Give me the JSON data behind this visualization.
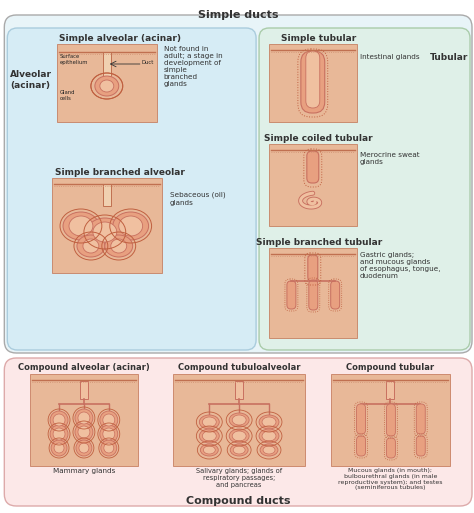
{
  "title": "Simple ducts",
  "bottom_title": "Compound ducts",
  "bg_color": "#ffffff",
  "alveolar_label": "Alveolar\n(acinar)",
  "tubular_label": "Tubular",
  "sections": {
    "simple_alveolar": "Simple alveolar (acinar)",
    "simple_branched_alveolar": "Simple branched alveolar",
    "simple_tubular": "Simple tubular",
    "simple_coiled_tubular": "Simple coiled tubular",
    "simple_branched_tubular": "Simple branched tubular",
    "compound_alveolar": "Compound alveolar (acinar)",
    "compound_tubuloalveolar": "Compound tubuloalveolar",
    "compound_tubular": "Compound tubular"
  },
  "examples": {
    "simple_alveolar": "Not found in\nadult; a stage in\ndevelopment of\nsimple\nbranched\nglands",
    "simple_branched_alveolar": "Sebaceous (oil)\nglands",
    "simple_tubular": "Intestinal glands",
    "simple_coiled_tubular": "Merocrine sweat\nglands",
    "simple_branched_tubular": "Gastric glands;\nand mucous glands\nof esophagus, tongue,\nduodenum",
    "compound_alveolar": "Mammary glands",
    "compound_tubuloalveolar": "Salivary glands; glands of\nrespiratory passages;\nand pancreas",
    "compound_tubular": "Mucous glands (in mouth);\nbulbourethral glands (in male\nreproductive system); and testes\n(seminiferous tubules)"
  },
  "gland_fill": "#e8a080",
  "gland_fill_light": "#f0c0a0",
  "gland_outer": "#c87060",
  "dotted_color": "#c06040",
  "top_bg": "#e8f4f8",
  "left_bg": "#d6ecf5",
  "left_bg_edge": "#aaccdd",
  "right_bg": "#dff0e8",
  "right_bg_edge": "#aaccaa",
  "bot_bg": "#fce8e8",
  "bot_bg_edge": "#ddaaaa",
  "surface_line": "#c07050",
  "surface_dotted": "#d09070"
}
